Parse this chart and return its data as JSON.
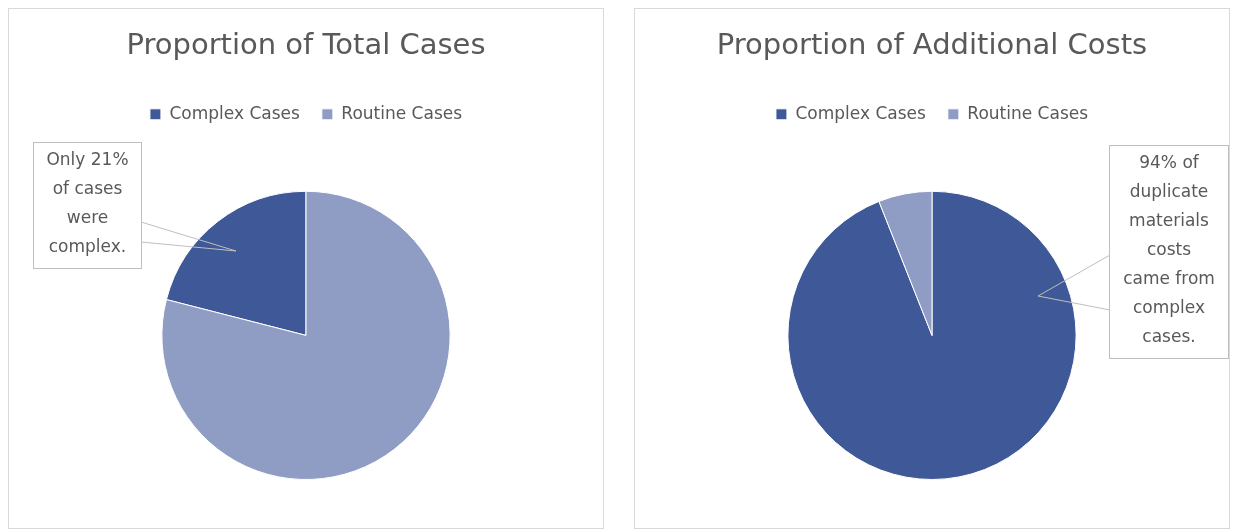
{
  "chart_data": [
    {
      "type": "pie",
      "title": "Proportion of Total Cases",
      "categories": [
        "Complex Cases",
        "Routine Cases"
      ],
      "values": [
        21,
        79
      ],
      "colors": [
        "#3f5897",
        "#8f9cc3"
      ],
      "legend": "top",
      "annotations": [
        "Only 21% of cases were complex."
      ]
    },
    {
      "type": "pie",
      "title": "Proportion of Additional Costs",
      "categories": [
        "Complex Cases",
        "Routine Cases"
      ],
      "values": [
        94,
        6
      ],
      "colors": [
        "#3f5897",
        "#8f9cc3"
      ],
      "legend": "top",
      "annotations": [
        "94% of duplicate materials costs came from complex cases."
      ]
    }
  ]
}
